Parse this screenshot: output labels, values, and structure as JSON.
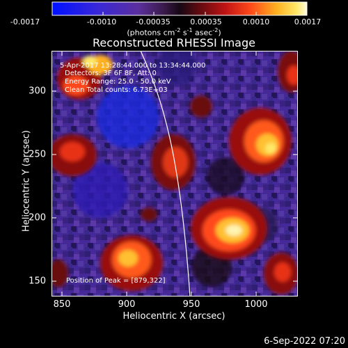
{
  "colorbar": {
    "tick_labels": [
      "-0.0017",
      "-0.0010",
      "-0.00035",
      "0.00035",
      "0.0010",
      "0.0017"
    ],
    "units_prefix": "(photons cm",
    "units_sup1": "-2",
    "units_mid": " s",
    "units_sup2": "-1",
    "units_suffix": " asec",
    "units_sup3": "-2",
    "units_end": ")"
  },
  "plot": {
    "title": "Reconstructed RHESSI Image",
    "x_label": "Heliocentric X (arcsec)",
    "y_label": "Heliocentric Y (arcsec)",
    "x_ticks": [
      "850",
      "900",
      "950",
      "1000"
    ],
    "y_ticks": [
      "300",
      "250",
      "200",
      "150"
    ]
  },
  "overlay": {
    "time_range": "5-Apr-2017 13:28:44.000 to 13:34:44.000",
    "detectors": "Detectors: 3F 6F 8F, Att: 0",
    "energy_range": "Energy Range: 25.0 - 50.0 keV",
    "clean_info": "Clean     Total counts: 6.73E+03",
    "peak_position": "Position of Peak = [879,322]"
  },
  "footer": {
    "date": "6-Sep-2022 07:20"
  },
  "colors": {
    "background": "#000000",
    "text": "#ffffff",
    "limb": "#ffffff"
  }
}
